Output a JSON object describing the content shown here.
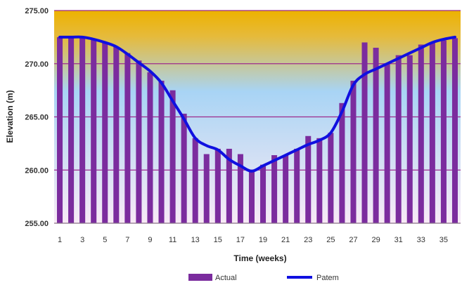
{
  "chart_data": {
    "type": "bar",
    "title": "",
    "xlabel": "Time (weeks)",
    "ylabel": "Elevation (m)",
    "ylim": [
      255,
      275
    ],
    "yticks": [
      "255.00",
      "260.00",
      "265.00",
      "270.00",
      "275.00"
    ],
    "x": [
      1,
      2,
      3,
      4,
      5,
      6,
      7,
      8,
      9,
      10,
      11,
      12,
      13,
      14,
      15,
      16,
      17,
      18,
      19,
      20,
      21,
      22,
      23,
      24,
      25,
      26,
      27,
      28,
      29,
      30,
      31,
      32,
      33,
      34,
      35,
      36
    ],
    "xtick_labels": [
      "1",
      "3",
      "5",
      "7",
      "9",
      "11",
      "13",
      "15",
      "17",
      "19",
      "21",
      "23",
      "25",
      "27",
      "29",
      "31",
      "33",
      "35"
    ],
    "grid": true,
    "legend_position": "bottom",
    "series": [
      {
        "name": "Actual",
        "kind": "bar",
        "color": "#7B2C9E",
        "values": [
          272.5,
          272.4,
          272.4,
          272.3,
          272.0,
          271.6,
          271.0,
          270.3,
          269.2,
          268.4,
          267.5,
          265.3,
          263.0,
          261.5,
          262.0,
          262.0,
          261.5,
          260.0,
          260.5,
          261.4,
          261.4,
          262.0,
          263.2,
          263.0,
          263.5,
          266.3,
          268.4,
          272.0,
          271.5,
          270.0,
          270.8,
          270.8,
          271.8,
          272.0,
          272.2,
          272.4
        ]
      },
      {
        "name": "Patem",
        "kind": "line",
        "color": "#1010E0",
        "values": [
          272.5,
          272.5,
          272.5,
          272.3,
          272.0,
          271.6,
          270.9,
          270.1,
          269.3,
          268.2,
          266.5,
          264.8,
          263.0,
          262.3,
          261.9,
          261.0,
          260.4,
          259.9,
          260.4,
          260.9,
          261.4,
          261.9,
          262.4,
          262.8,
          263.5,
          265.5,
          268.0,
          269.0,
          269.5,
          270.0,
          270.5,
          271.0,
          271.5,
          272.0,
          272.3,
          272.5
        ]
      }
    ]
  },
  "colors": {
    "background_top": "#EDB200",
    "background_mid": "#A8D4F5",
    "background_bottom": "#F8EAF6",
    "gridline": "#9C2A8C"
  }
}
